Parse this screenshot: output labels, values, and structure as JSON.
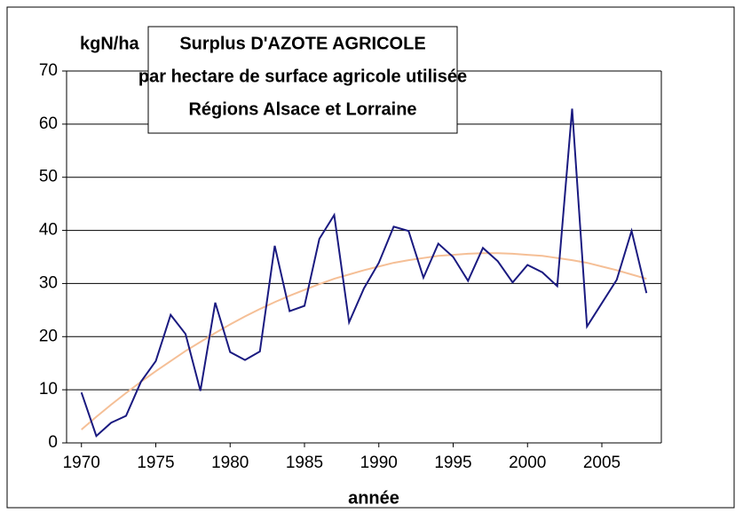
{
  "chart_data": {
    "type": "line",
    "title": [
      "Surplus D'AZOTE AGRICOLE",
      "par hectare de surface agricole utilisée",
      "Régions Alsace et Lorraine"
    ],
    "y_label": "kgN/ha",
    "x_label": "année",
    "x": [
      1970,
      1971,
      1972,
      1973,
      1974,
      1975,
      1976,
      1977,
      1978,
      1979,
      1980,
      1981,
      1982,
      1983,
      1984,
      1985,
      1986,
      1987,
      1988,
      1989,
      1990,
      1991,
      1992,
      1993,
      1994,
      1995,
      1996,
      1997,
      1998,
      1999,
      2000,
      2001,
      2002,
      2003,
      2004,
      2005,
      2006,
      2007,
      2008
    ],
    "series": [
      {
        "color": "#1a1a80",
        "values": [
          9.5,
          1.3,
          3.8,
          5.1,
          11.5,
          15.4,
          24.1,
          20.5,
          9.8,
          26.4,
          17.1,
          15.6,
          17.2,
          37.1,
          24.8,
          25.8,
          38.4,
          42.9,
          22.7,
          29.1,
          33.9,
          40.7,
          39.9,
          31.1,
          37.5,
          35.0,
          30.5,
          36.7,
          34.2,
          30.2,
          33.5,
          32.1,
          29.5,
          62.9,
          21.9,
          26.3,
          30.7,
          39.9,
          28.2
        ]
      },
      {
        "color": "#f5bf96",
        "values": [
          2.5,
          4.9,
          7.2,
          9.4,
          11.5,
          13.5,
          15.4,
          17.3,
          19.0,
          20.7,
          22.3,
          23.8,
          25.2,
          26.5,
          27.7,
          28.8,
          29.9,
          30.9,
          31.7,
          32.5,
          33.2,
          33.9,
          34.4,
          34.8,
          35.2,
          35.4,
          35.6,
          35.7,
          35.7,
          35.6,
          35.4,
          35.2,
          34.8,
          34.4,
          33.9,
          33.2,
          32.5,
          31.7,
          30.9
        ]
      }
    ],
    "xlim": [
      1969,
      2009
    ],
    "xticks": [
      1970,
      1975,
      1980,
      1985,
      1990,
      1995,
      2000,
      2005
    ],
    "ylim": [
      0,
      70
    ],
    "yticks": [
      0,
      10,
      20,
      30,
      40,
      50,
      60,
      70
    ],
    "grid": true
  }
}
